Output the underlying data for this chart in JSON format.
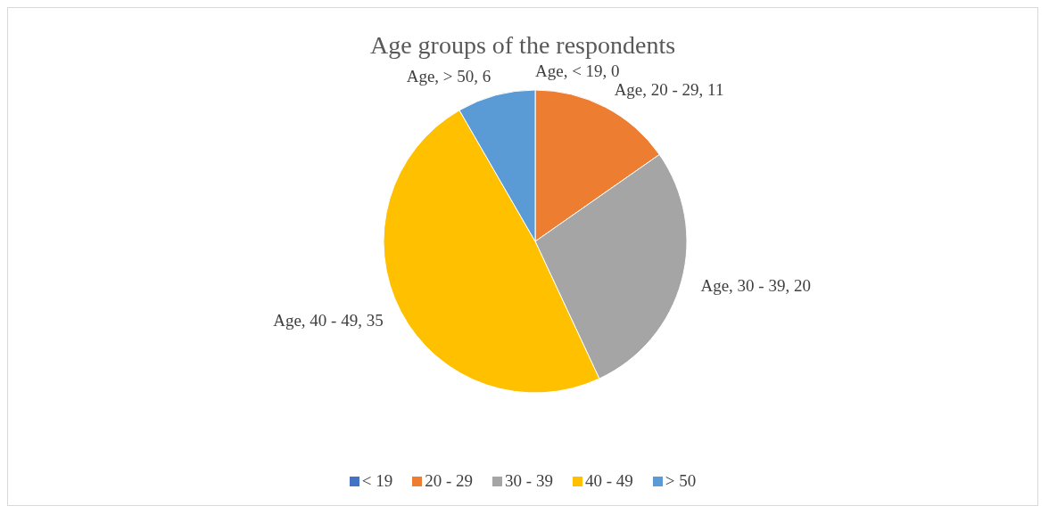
{
  "chart_data": {
    "type": "pie",
    "title": "Age groups of the respondents",
    "categories": [
      "< 19",
      "20 - 29",
      "30 - 39",
      "40 - 49",
      "> 50"
    ],
    "values": [
      0,
      11,
      20,
      35,
      6
    ],
    "value_labels": [
      "Age, < 19, 0",
      "Age, 20 - 29, 11",
      "Age, 30 - 39, 20",
      "Age, 40 - 49, 35",
      "Age, > 50, 6"
    ],
    "colors": [
      "#4472c4",
      "#ed7d31",
      "#a5a5a5",
      "#ffc000",
      "#5b9bd5"
    ],
    "legend": "bottom"
  }
}
